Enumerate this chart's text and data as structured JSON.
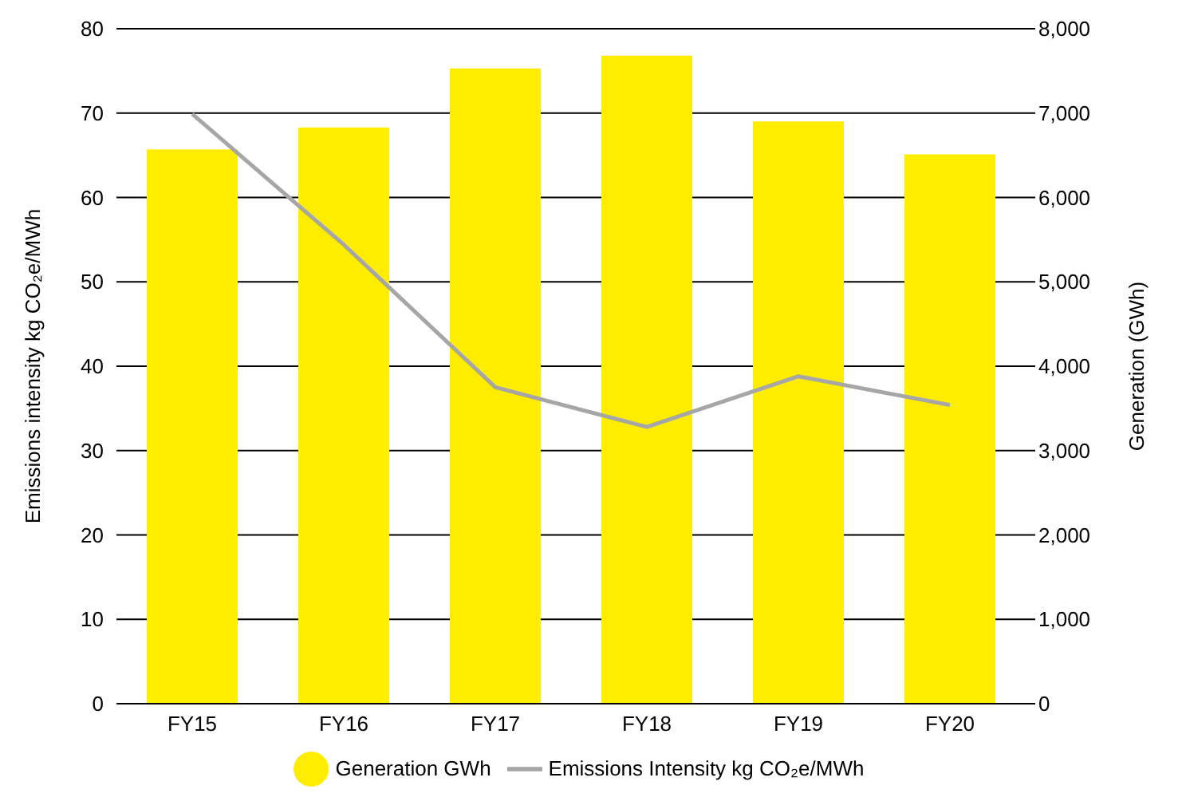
{
  "chart_data": {
    "type": "bar",
    "categories": [
      "FY15",
      "FY16",
      "FY17",
      "FY18",
      "FY19",
      "FY20"
    ],
    "ylabel": "Emissions intensity kg CO₂e/MWh",
    "y2label": "Generation (GWh)",
    "ylim": [
      0,
      80
    ],
    "yticks": [
      0,
      10,
      20,
      30,
      40,
      50,
      60,
      70,
      80
    ],
    "y2lim": [
      0,
      8000
    ],
    "y2ticks": [
      {
        "value": 0,
        "label": "0"
      },
      {
        "value": 1000,
        "label": "1,000"
      },
      {
        "value": 2000,
        "label": "2,000"
      },
      {
        "value": 3000,
        "label": "3,000"
      },
      {
        "value": 4000,
        "label": "4,000"
      },
      {
        "value": 5000,
        "label": "5,000"
      },
      {
        "value": 6000,
        "label": "6,000"
      },
      {
        "value": 7000,
        "label": "7,000"
      },
      {
        "value": 8000,
        "label": "8,000"
      }
    ],
    "series": [
      {
        "name": "Generation GWh",
        "axis": "y2",
        "color": "#ffed00",
        "values": [
          6570,
          6830,
          7530,
          7680,
          6900,
          6510
        ]
      },
      {
        "name": "Emissions Intensity kg CO₂e/MWh",
        "type": "line",
        "color": "#a6a6a6",
        "values": [
          69.9,
          54.4,
          37.5,
          32.8,
          38.8,
          35.4
        ]
      }
    ],
    "grid": "y",
    "legend": "bottom",
    "marker": "none"
  }
}
